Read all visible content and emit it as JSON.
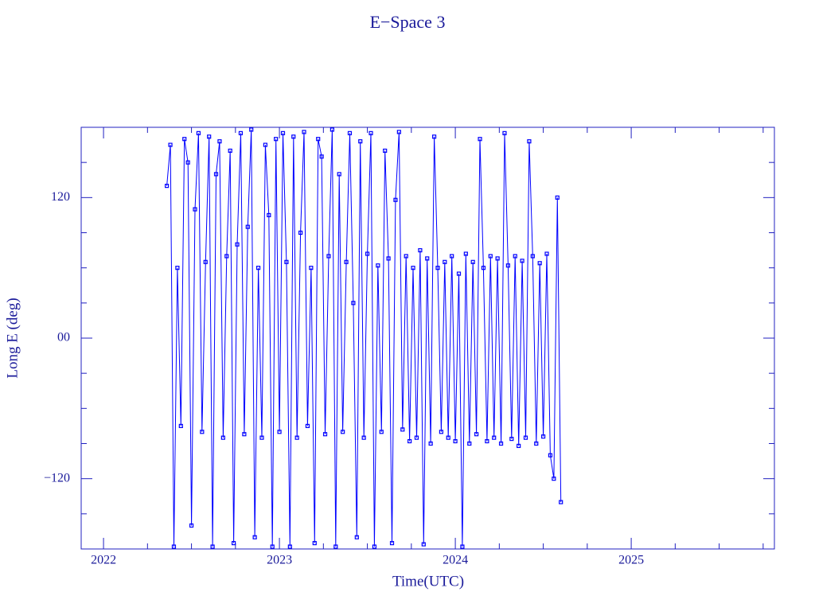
{
  "chart_data": {
    "type": "line",
    "title": "E−Space 3",
    "xlabel": "Time(UTC)",
    "ylabel": "Long E (deg)",
    "xlim": [
      2021.873,
      2025.814
    ],
    "xticks": [
      2022,
      2023,
      2024,
      2025
    ],
    "xminorticks": [
      2022.25,
      2022.5,
      2022.75,
      2023.25,
      2023.5,
      2023.75,
      2024.25,
      2024.5,
      2024.75,
      2025.25,
      2025.5,
      2025.75
    ],
    "ylim": [
      -180,
      180
    ],
    "yticks": [
      {
        "value": -120,
        "label": "−120"
      },
      {
        "value": 0,
        "label": "00"
      },
      120
    ],
    "yminorticks": [
      -150,
      -90,
      -60,
      -30,
      30,
      60,
      90,
      150
    ],
    "color": "#0000ff",
    "markers": true,
    "x": [
      2022.36,
      2022.38,
      2022.4,
      2022.42,
      2022.44,
      2022.46,
      2022.48,
      2022.5,
      2022.52,
      2022.54,
      2022.56,
      2022.58,
      2022.6,
      2022.62,
      2022.64,
      2022.66,
      2022.68,
      2022.7,
      2022.72,
      2022.74,
      2022.76,
      2022.78,
      2022.8,
      2022.82,
      2022.84,
      2022.86,
      2022.88,
      2022.9,
      2022.92,
      2022.94,
      2022.96,
      2022.98,
      2023.0,
      2023.02,
      2023.04,
      2023.06,
      2023.08,
      2023.1,
      2023.12,
      2023.14,
      2023.16,
      2023.18,
      2023.2,
      2023.22,
      2023.24,
      2023.26,
      2023.28,
      2023.3,
      2023.32,
      2023.34,
      2023.36,
      2023.38,
      2023.4,
      2023.42,
      2023.44,
      2023.46,
      2023.48,
      2023.5,
      2023.52,
      2023.54,
      2023.56,
      2023.58,
      2023.6,
      2023.62,
      2023.64,
      2023.66,
      2023.68,
      2023.7,
      2023.72,
      2023.74,
      2023.76,
      2023.78,
      2023.8,
      2023.82,
      2023.84,
      2023.86,
      2023.88,
      2023.9,
      2023.92,
      2023.94,
      2023.96,
      2023.98,
      2024.0,
      2024.02,
      2024.04,
      2024.06,
      2024.08,
      2024.1,
      2024.12,
      2024.14,
      2024.16,
      2024.18,
      2024.2,
      2024.22,
      2024.24,
      2024.26,
      2024.28,
      2024.3,
      2024.32,
      2024.34,
      2024.36,
      2024.38,
      2024.4,
      2024.42,
      2024.44,
      2024.46,
      2024.48,
      2024.5,
      2024.52,
      2024.54,
      2024.56,
      2024.58,
      2024.6
    ],
    "values": [
      130,
      165,
      -178,
      60,
      -75,
      170,
      150,
      -160,
      110,
      175,
      -80,
      65,
      172,
      -178,
      140,
      168,
      -85,
      70,
      160,
      -175,
      80,
      175,
      -82,
      95,
      178,
      -170,
      60,
      -85,
      165,
      105,
      -178,
      170,
      -80,
      175,
      65,
      -178,
      172,
      -85,
      90,
      176,
      -75,
      60,
      -175,
      170,
      155,
      -82,
      70,
      178,
      -178,
      140,
      -80,
      65,
      175,
      30,
      -170,
      168,
      -85,
      72,
      175,
      -178,
      62,
      -80,
      160,
      68,
      -175,
      118,
      176,
      -78,
      70,
      -88,
      60,
      -85,
      75,
      -176,
      68,
      -90,
      172,
      60,
      -80,
      65,
      -85,
      70,
      -88,
      55,
      -178,
      72,
      -90,
      65,
      -82,
      170,
      60,
      -88,
      70,
      -85,
      68,
      -90,
      175,
      62,
      -86,
      70,
      -92,
      66,
      -85,
      168,
      70,
      -90,
      64,
      -84,
      72,
      -100,
      -120,
      120,
      -140
    ]
  }
}
